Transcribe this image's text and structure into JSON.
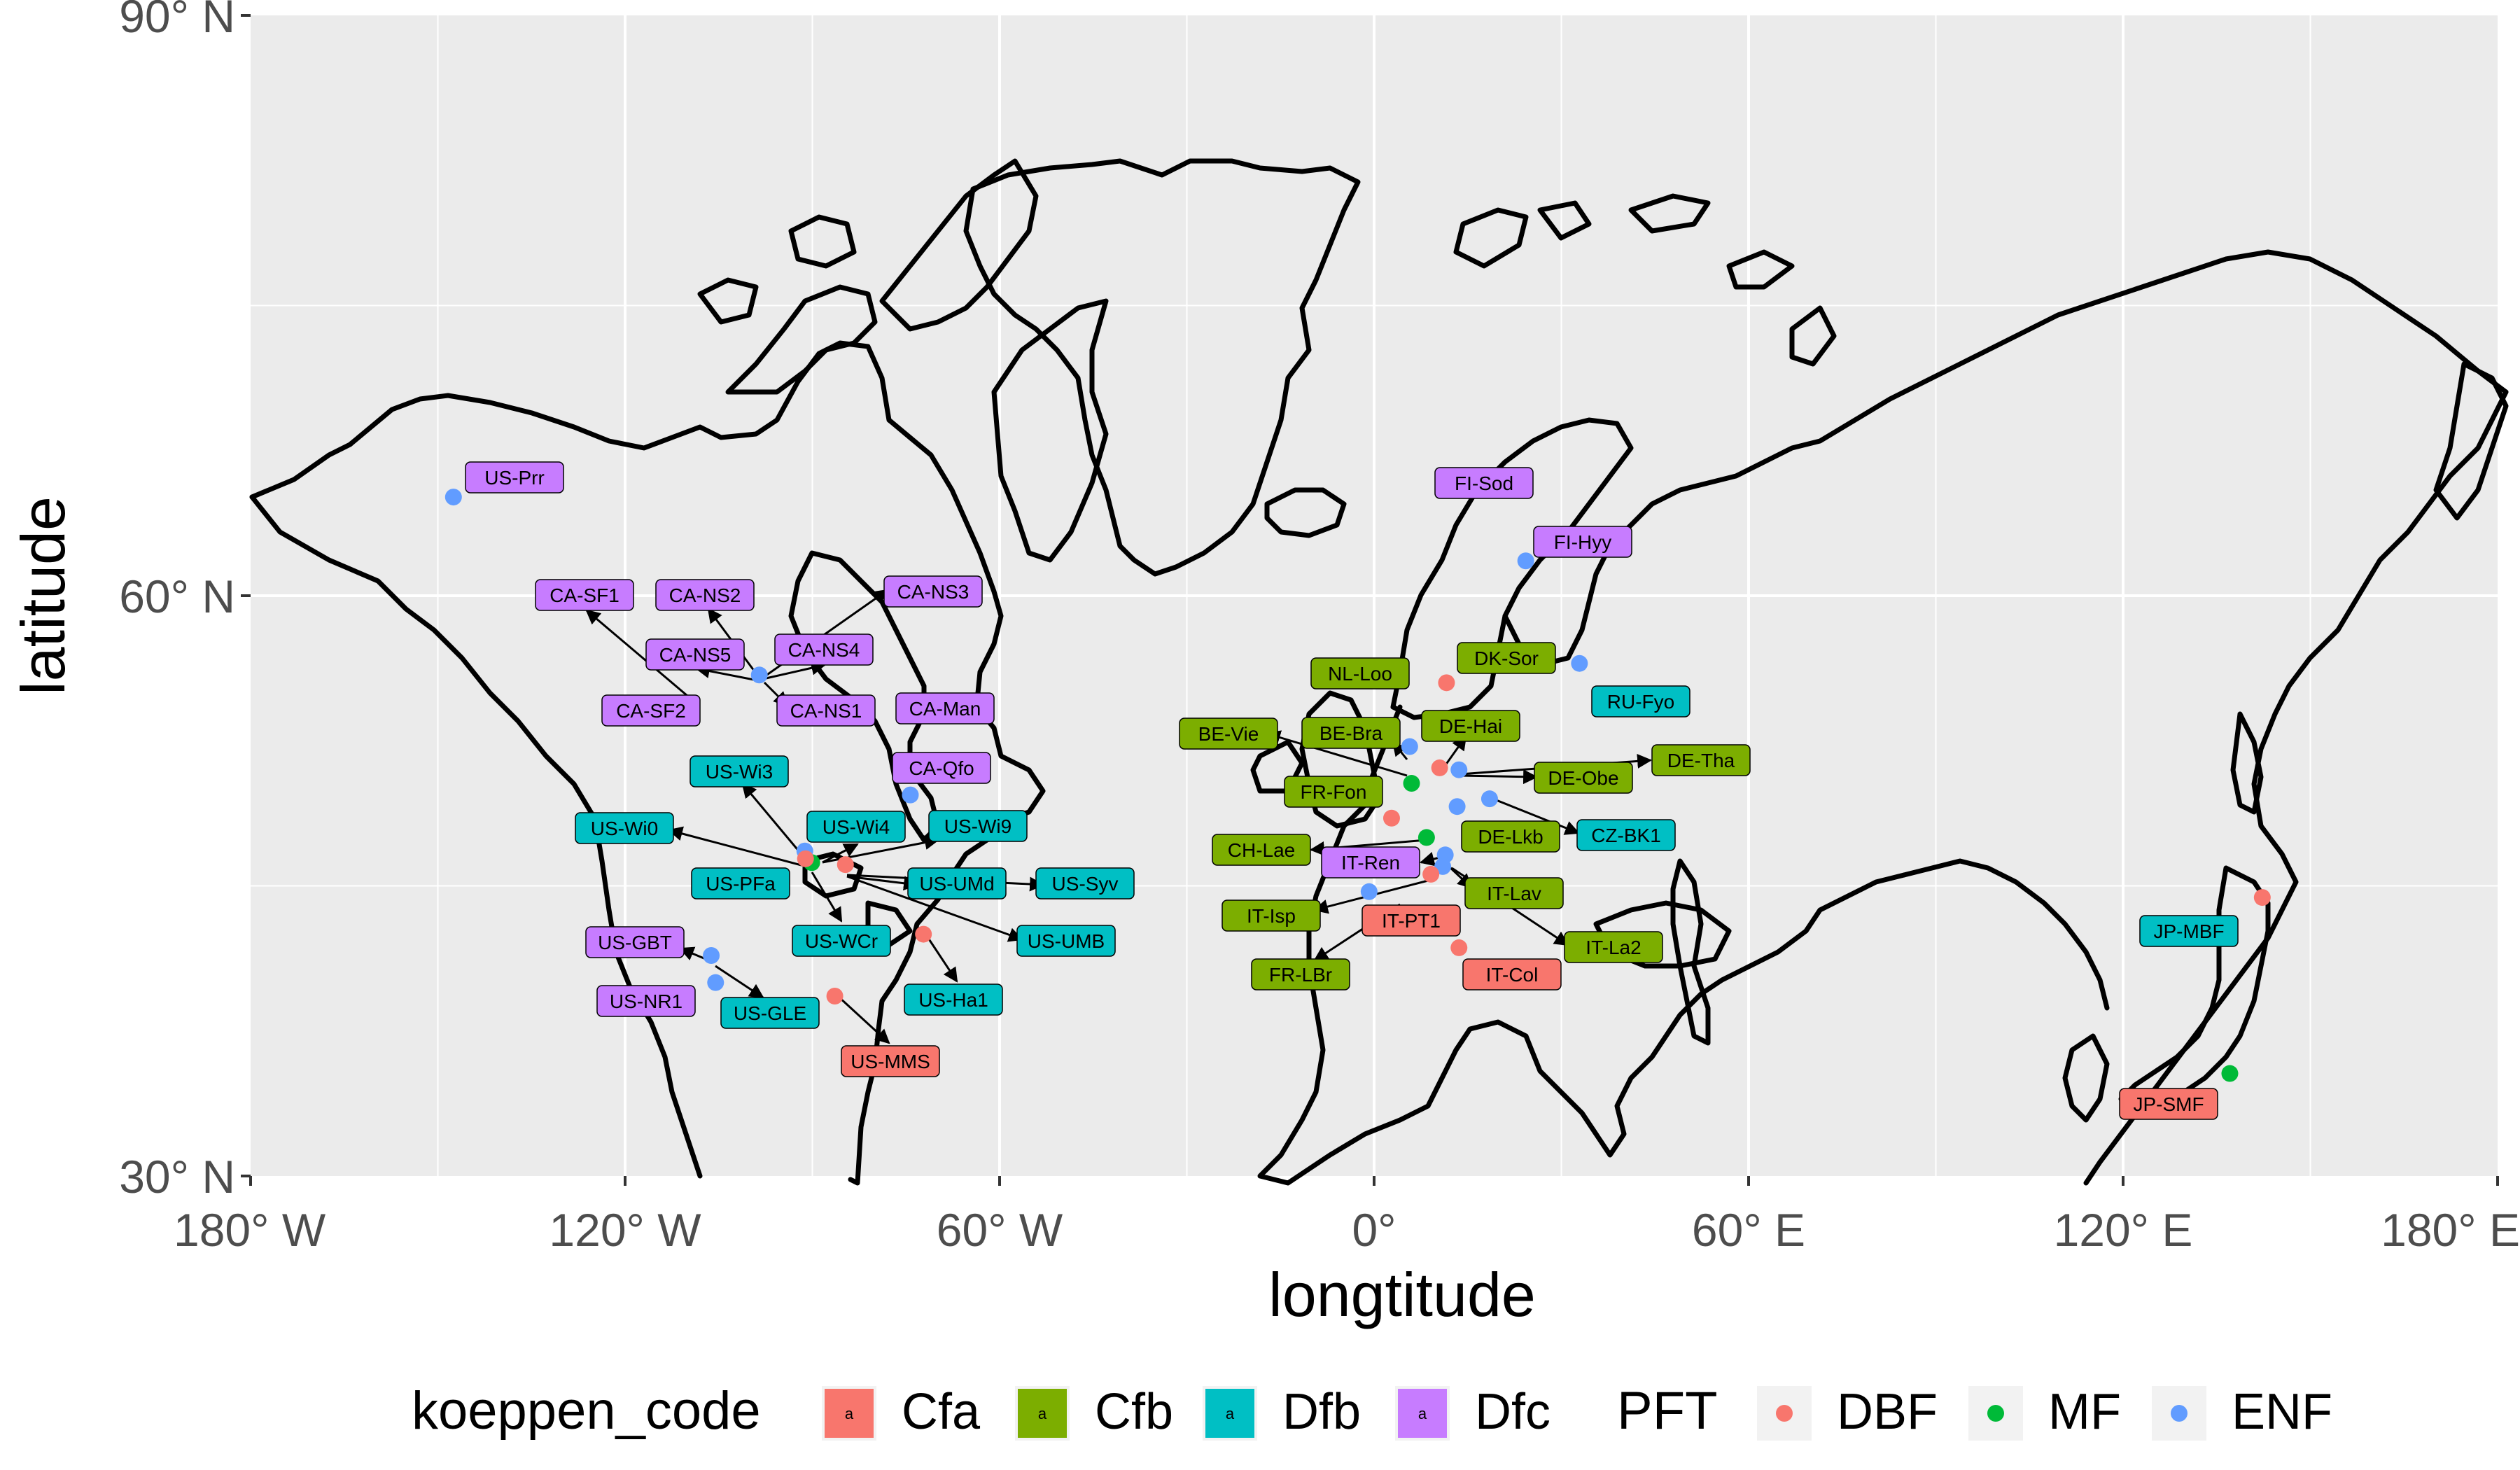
{
  "axes": {
    "x_title": "longtitude",
    "y_title": "latitude",
    "x_ticks": [
      {
        "value": -180,
        "label": "180° W"
      },
      {
        "value": -120,
        "label": "120° W"
      },
      {
        "value": -60,
        "label": "60° W"
      },
      {
        "value": 0,
        "label": "0°"
      },
      {
        "value": 60,
        "label": "60° E"
      },
      {
        "value": 120,
        "label": "120° E"
      },
      {
        "value": 180,
        "label": "180° E"
      }
    ],
    "y_ticks": [
      {
        "value": 30,
        "label": "30° N"
      },
      {
        "value": 60,
        "label": "60° N"
      },
      {
        "value": 90,
        "label": "90° N"
      }
    ],
    "xlim": [
      -180,
      180
    ],
    "ylim": [
      30,
      90
    ]
  },
  "colors": {
    "Cfa": "#F8766D",
    "Cfb": "#7CAE00",
    "Dfb": "#00BFC4",
    "Dfc": "#C77CFF",
    "DBF": "#F8766D",
    "MF": "#00BA38",
    "ENF": "#619CFF",
    "panel": "#EBEBEB",
    "grid": "#FFFFFF",
    "coast": "#000000"
  },
  "legend": {
    "koeppen_title": "koeppen_code",
    "koeppen_key_glyph": "a",
    "koeppen_items": [
      "Cfa",
      "Cfb",
      "Dfb",
      "Dfc"
    ],
    "pft_title": "PFT",
    "pft_items": [
      "DBF",
      "MF",
      "ENF"
    ]
  },
  "chart_data": {
    "type": "scatter",
    "x_unit": "degrees longitude (negative = W)",
    "y_unit": "degrees latitude (N)",
    "sites": [
      {
        "name": "US-Prr",
        "lon": -147.5,
        "lat": 65.1,
        "pft": "ENF",
        "koeppen": "Dfc"
      },
      {
        "name": "CA-SF1",
        "lon": -105.8,
        "lat": 54.5,
        "pft": "ENF",
        "koeppen": "Dfc"
      },
      {
        "name": "CA-SF2",
        "lon": -105.9,
        "lat": 54.3,
        "pft": "ENF",
        "koeppen": "Dfc"
      },
      {
        "name": "CA-NS2",
        "lon": -98.5,
        "lat": 55.9,
        "pft": "ENF",
        "koeppen": "Dfc"
      },
      {
        "name": "CA-NS3",
        "lon": -98.4,
        "lat": 55.9,
        "pft": "ENF",
        "koeppen": "Dfc"
      },
      {
        "name": "CA-NS4",
        "lon": -98.4,
        "lat": 55.9,
        "pft": "ENF",
        "koeppen": "Dfc"
      },
      {
        "name": "CA-NS5",
        "lon": -98.5,
        "lat": 55.9,
        "pft": "ENF",
        "koeppen": "Dfc"
      },
      {
        "name": "CA-NS1",
        "lon": -98.5,
        "lat": 55.9,
        "pft": "ENF",
        "koeppen": "Dfc"
      },
      {
        "name": "CA-Man",
        "lon": -98.5,
        "lat": 55.9,
        "pft": "ENF",
        "koeppen": "Dfc"
      },
      {
        "name": "CA-Qfo",
        "lon": -74.3,
        "lat": 49.7,
        "pft": "ENF",
        "koeppen": "Dfc"
      },
      {
        "name": "US-Wi3",
        "lon": -91.1,
        "lat": 46.6,
        "pft": "DBF",
        "koeppen": "Dfb"
      },
      {
        "name": "US-Wi0",
        "lon": -91.1,
        "lat": 46.6,
        "pft": "DBF",
        "koeppen": "Dfb"
      },
      {
        "name": "US-Wi4",
        "lon": -91.2,
        "lat": 46.7,
        "pft": "ENF",
        "koeppen": "Dfb"
      },
      {
        "name": "US-Wi9",
        "lon": -91.1,
        "lat": 46.6,
        "pft": "ENF",
        "koeppen": "Dfb"
      },
      {
        "name": "US-PFa",
        "lon": -90.3,
        "lat": 45.9,
        "pft": "MF",
        "koeppen": "Dfb"
      },
      {
        "name": "US-UMd",
        "lon": -84.7,
        "lat": 45.6,
        "pft": "DBF",
        "koeppen": "Dfb"
      },
      {
        "name": "US-Syv",
        "lon": -89.3,
        "lat": 46.2,
        "pft": "MF",
        "koeppen": "Dfb"
      },
      {
        "name": "US-WCr",
        "lon": -90.1,
        "lat": 45.8,
        "pft": "DBF",
        "koeppen": "Dfb"
      },
      {
        "name": "US-UMB",
        "lon": -84.7,
        "lat": 45.6,
        "pft": "DBF",
        "koeppen": "Dfb"
      },
      {
        "name": "US-GBT",
        "lon": -106.2,
        "lat": 41.4,
        "pft": "ENF",
        "koeppen": "Dfc"
      },
      {
        "name": "US-NR1",
        "lon": -105.5,
        "lat": 40.0,
        "pft": "ENF",
        "koeppen": "Dfc"
      },
      {
        "name": "US-GLE",
        "lon": -106.2,
        "lat": 41.4,
        "pft": "ENF",
        "koeppen": "Dfb"
      },
      {
        "name": "US-Ha1",
        "lon": -72.2,
        "lat": 42.5,
        "pft": "DBF",
        "koeppen": "Dfb"
      },
      {
        "name": "US-MMS",
        "lon": -86.4,
        "lat": 39.3,
        "pft": "DBF",
        "koeppen": "Cfa"
      },
      {
        "name": "FI-Sod",
        "lon": 26.6,
        "lat": 67.4,
        "pft": "ENF",
        "koeppen": "Dfc"
      },
      {
        "name": "FI-Hyy",
        "lon": 24.3,
        "lat": 61.8,
        "pft": "ENF",
        "koeppen": "Dfc"
      },
      {
        "name": "RU-Fyo",
        "lon": 32.9,
        "lat": 56.5,
        "pft": "ENF",
        "koeppen": "Dfb"
      },
      {
        "name": "DK-Sor",
        "lon": 11.6,
        "lat": 55.5,
        "pft": "DBF",
        "koeppen": "Cfb"
      },
      {
        "name": "NL-Loo",
        "lon": 5.7,
        "lat": 52.2,
        "pft": "ENF",
        "koeppen": "Cfb"
      },
      {
        "name": "BE-Vie",
        "lon": 6.0,
        "lat": 50.3,
        "pft": "MF",
        "koeppen": "Cfb"
      },
      {
        "name": "BE-Bra",
        "lon": 4.5,
        "lat": 51.3,
        "pft": "MF",
        "koeppen": "Cfb"
      },
      {
        "name": "DE-Hai",
        "lon": 10.5,
        "lat": 51.1,
        "pft": "DBF",
        "koeppen": "Cfb"
      },
      {
        "name": "DE-Tha",
        "lon": 13.6,
        "lat": 51.0,
        "pft": "ENF",
        "koeppen": "Cfb"
      },
      {
        "name": "DE-Obe",
        "lon": 13.7,
        "lat": 50.8,
        "pft": "ENF",
        "koeppen": "Cfb"
      },
      {
        "name": "FR-Fon",
        "lon": 2.8,
        "lat": 48.5,
        "pft": "DBF",
        "koeppen": "Cfb"
      },
      {
        "name": "DE-Lkb",
        "lon": 13.3,
        "lat": 49.1,
        "pft": "ENF",
        "koeppen": "Cfb"
      },
      {
        "name": "CZ-BK1",
        "lon": 18.5,
        "lat": 49.5,
        "pft": "ENF",
        "koeppen": "Dfb"
      },
      {
        "name": "CH-Lae",
        "lon": 8.4,
        "lat": 47.5,
        "pft": "MF",
        "koeppen": "Cfb"
      },
      {
        "name": "IT-Ren",
        "lon": 11.4,
        "lat": 46.6,
        "pft": "ENF",
        "koeppen": "Dfc"
      },
      {
        "name": "IT-Lav",
        "lon": 11.3,
        "lat": 46.0,
        "pft": "ENF",
        "koeppen": "Cfb"
      },
      {
        "name": "IT-Isp",
        "lon": 8.6,
        "lat": 45.8,
        "pft": "DBF",
        "koeppen": "Cfb"
      },
      {
        "name": "IT-PT1",
        "lon": 9.1,
        "lat": 45.2,
        "pft": "DBF",
        "koeppen": "Cfa"
      },
      {
        "name": "FR-LBr",
        "lon": -0.8,
        "lat": 44.7,
        "pft": "ENF",
        "koeppen": "Cfb"
      },
      {
        "name": "IT-La2",
        "lon": 11.3,
        "lat": 46.0,
        "pft": "ENF",
        "koeppen": "Cfb"
      },
      {
        "name": "IT-Col",
        "lon": 13.6,
        "lat": 41.8,
        "pft": "DBF",
        "koeppen": "Cfa"
      },
      {
        "name": "JP-MBF",
        "lon": 142.3,
        "lat": 44.4,
        "pft": "DBF",
        "koeppen": "Dfb"
      },
      {
        "name": "JP-SMF",
        "lon": 137.1,
        "lat": 35.3,
        "pft": "MF",
        "koeppen": "Cfa"
      }
    ],
    "points": [
      {
        "lon": -147.5,
        "lat": 65.1,
        "pft": "ENF"
      },
      {
        "lon": -98.5,
        "lat": 55.9,
        "pft": "ENF"
      },
      {
        "lon": -74.3,
        "lat": 49.7,
        "pft": "ENF"
      },
      {
        "lon": -91.2,
        "lat": 46.8,
        "pft": "ENF"
      },
      {
        "lon": -90.1,
        "lat": 46.2,
        "pft": "MF"
      },
      {
        "lon": -91.1,
        "lat": 46.4,
        "pft": "DBF"
      },
      {
        "lon": -84.7,
        "lat": 46.1,
        "pft": "DBF"
      },
      {
        "lon": -106.2,
        "lat": 41.4,
        "pft": "ENF"
      },
      {
        "lon": -105.5,
        "lat": 40.0,
        "pft": "ENF"
      },
      {
        "lon": -72.2,
        "lat": 42.5,
        "pft": "DBF"
      },
      {
        "lon": -86.4,
        "lat": 39.3,
        "pft": "DBF"
      },
      {
        "lon": 24.3,
        "lat": 61.8,
        "pft": "ENF"
      },
      {
        "lon": 32.9,
        "lat": 56.5,
        "pft": "ENF"
      },
      {
        "lon": 11.6,
        "lat": 55.5,
        "pft": "DBF"
      },
      {
        "lon": 5.7,
        "lat": 52.2,
        "pft": "ENF"
      },
      {
        "lon": 10.5,
        "lat": 51.1,
        "pft": "DBF"
      },
      {
        "lon": 13.6,
        "lat": 51.0,
        "pft": "ENF"
      },
      {
        "lon": 6.0,
        "lat": 50.3,
        "pft": "MF"
      },
      {
        "lon": 18.5,
        "lat": 49.5,
        "pft": "ENF"
      },
      {
        "lon": 13.3,
        "lat": 49.1,
        "pft": "ENF"
      },
      {
        "lon": 2.8,
        "lat": 48.5,
        "pft": "DBF"
      },
      {
        "lon": 8.4,
        "lat": 47.5,
        "pft": "MF"
      },
      {
        "lon": 11.4,
        "lat": 46.6,
        "pft": "ENF"
      },
      {
        "lon": 11.0,
        "lat": 46.0,
        "pft": "ENF"
      },
      {
        "lon": 9.1,
        "lat": 45.6,
        "pft": "DBF"
      },
      {
        "lon": -0.8,
        "lat": 44.7,
        "pft": "ENF"
      },
      {
        "lon": 13.6,
        "lat": 41.8,
        "pft": "DBF"
      },
      {
        "lon": 142.3,
        "lat": 44.4,
        "pft": "DBF"
      },
      {
        "lon": 137.1,
        "lat": 35.3,
        "pft": "MF"
      }
    ]
  }
}
